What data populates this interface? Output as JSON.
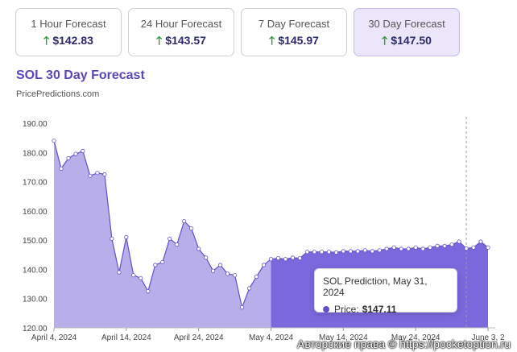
{
  "cards": [
    {
      "label": "1 Hour Forecast",
      "value": "$142.83"
    },
    {
      "label": "24 Hour Forecast",
      "value": "$143.57"
    },
    {
      "label": "7 Day Forecast",
      "value": "$145.97"
    },
    {
      "label": "30 Day Forecast",
      "value": "$147.50"
    }
  ],
  "header": {
    "title": "SOL 30 Day Forecast",
    "source": "PricePredictions.com"
  },
  "tooltip": {
    "title": "SOL Prediction, May 31, 2024",
    "price_label": "Price:",
    "price_value": "$147.11"
  },
  "watermark": "Авторские права © https://pocketoption.ru",
  "colors": {
    "history_fill": "#b7aeea",
    "forecast_fill": "#7b68dc",
    "line": "#6450c8",
    "accent": "#5a46b8",
    "up_arrow": "#2f9a3c"
  },
  "chart_data": {
    "type": "area",
    "title": "SOL 30 Day Forecast",
    "xlabel": "",
    "ylabel": "",
    "ylim": [
      120,
      190
    ],
    "xlim": [
      "2024-04-04",
      "2024-06-04"
    ],
    "yticks": [
      "190.00",
      "180.00",
      "170.00",
      "160.00",
      "150.00",
      "140.00",
      "130.00",
      "120.00"
    ],
    "xticks": [
      "April 4, 2024",
      "April 14, 2024",
      "April 24, 2024",
      "May 4, 2024",
      "May 14, 2024",
      "May 24, 2024",
      "June 3, 2"
    ],
    "forecast_start": "2024-05-04",
    "highlight_date": "2024-05-31",
    "grid": false,
    "series": [
      {
        "values": [
          {
            "x": "2024-04-04",
            "y": 184.0
          },
          {
            "x": "2024-04-05",
            "y": 174.5
          },
          {
            "x": "2024-04-06",
            "y": 178.0
          },
          {
            "x": "2024-04-07",
            "y": 179.5
          },
          {
            "x": "2024-04-08",
            "y": 180.5
          },
          {
            "x": "2024-04-09",
            "y": 172.0
          },
          {
            "x": "2024-04-10",
            "y": 173.0
          },
          {
            "x": "2024-04-11",
            "y": 172.5
          },
          {
            "x": "2024-04-12",
            "y": 150.5
          },
          {
            "x": "2024-04-13",
            "y": 139.0
          },
          {
            "x": "2024-04-14",
            "y": 151.0
          },
          {
            "x": "2024-04-15",
            "y": 138.0
          },
          {
            "x": "2024-04-16",
            "y": 137.0
          },
          {
            "x": "2024-04-17",
            "y": 132.5
          },
          {
            "x": "2024-04-18",
            "y": 141.5
          },
          {
            "x": "2024-04-19",
            "y": 142.5
          },
          {
            "x": "2024-04-20",
            "y": 150.5
          },
          {
            "x": "2024-04-21",
            "y": 148.5
          },
          {
            "x": "2024-04-22",
            "y": 156.5
          },
          {
            "x": "2024-04-23",
            "y": 154.0
          },
          {
            "x": "2024-04-24",
            "y": 147.0
          },
          {
            "x": "2024-04-25",
            "y": 144.0
          },
          {
            "x": "2024-04-26",
            "y": 139.5
          },
          {
            "x": "2024-04-27",
            "y": 141.5
          },
          {
            "x": "2024-04-28",
            "y": 138.5
          },
          {
            "x": "2024-04-29",
            "y": 138.0
          },
          {
            "x": "2024-04-30",
            "y": 127.0
          },
          {
            "x": "2024-05-01",
            "y": 133.5
          },
          {
            "x": "2024-05-02",
            "y": 137.5
          },
          {
            "x": "2024-05-03",
            "y": 141.5
          },
          {
            "x": "2024-05-04",
            "y": 143.5
          },
          {
            "x": "2024-05-05",
            "y": 143.8
          },
          {
            "x": "2024-05-06",
            "y": 143.5
          },
          {
            "x": "2024-05-07",
            "y": 144.0
          },
          {
            "x": "2024-05-08",
            "y": 143.8
          },
          {
            "x": "2024-05-09",
            "y": 146.0
          },
          {
            "x": "2024-05-10",
            "y": 146.0
          },
          {
            "x": "2024-05-11",
            "y": 146.0
          },
          {
            "x": "2024-05-12",
            "y": 146.0
          },
          {
            "x": "2024-05-13",
            "y": 145.8
          },
          {
            "x": "2024-05-14",
            "y": 146.2
          },
          {
            "x": "2024-05-15",
            "y": 146.2
          },
          {
            "x": "2024-05-16",
            "y": 146.2
          },
          {
            "x": "2024-05-17",
            "y": 146.5
          },
          {
            "x": "2024-05-18",
            "y": 146.2
          },
          {
            "x": "2024-05-19",
            "y": 146.5
          },
          {
            "x": "2024-05-20",
            "y": 147.0
          },
          {
            "x": "2024-05-21",
            "y": 147.5
          },
          {
            "x": "2024-05-22",
            "y": 147.0
          },
          {
            "x": "2024-05-23",
            "y": 147.0
          },
          {
            "x": "2024-05-24",
            "y": 147.5
          },
          {
            "x": "2024-05-25",
            "y": 147.0
          },
          {
            "x": "2024-05-26",
            "y": 147.5
          },
          {
            "x": "2024-05-27",
            "y": 148.0
          },
          {
            "x": "2024-05-28",
            "y": 148.0
          },
          {
            "x": "2024-05-29",
            "y": 148.5
          },
          {
            "x": "2024-05-30",
            "y": 149.5
          },
          {
            "x": "2024-05-31",
            "y": 147.11
          },
          {
            "x": "2024-06-01",
            "y": 147.5
          },
          {
            "x": "2024-06-02",
            "y": 149.5
          },
          {
            "x": "2024-06-03",
            "y": 147.5
          }
        ]
      }
    ]
  }
}
